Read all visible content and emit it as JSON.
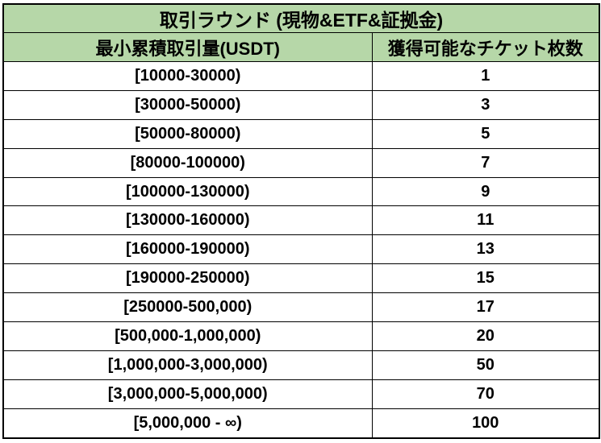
{
  "title": "取引ラウンド (現物&ETF&証拠金)",
  "header": {
    "col1": "最小累積取引量(USDT)",
    "col2": "獲得可能なチケット枚数"
  },
  "rows": [
    [
      "[10000-30000)",
      "1"
    ],
    [
      "[30000-50000)",
      "3"
    ],
    [
      "[50000-80000)",
      "5"
    ],
    [
      "[80000-100000)",
      "7"
    ],
    [
      "[100000-130000)",
      "9"
    ],
    [
      "[130000-160000)",
      "11"
    ],
    [
      "[160000-190000)",
      "13"
    ],
    [
      "[190000-250000)",
      "15"
    ],
    [
      "[250000-500,000)",
      "17"
    ],
    [
      "[500,000-1,000,000)",
      "20"
    ],
    [
      "[1,000,000-3,000,000)",
      "50"
    ],
    [
      "[3,000,000-5,000,000)",
      "70"
    ],
    [
      "[5,000,000 - ∞)",
      "100"
    ]
  ],
  "colors": {
    "header_bg": "#b6d7a8",
    "border_color": "#000000",
    "row_bg": "#ffffff",
    "text_color": "#000000"
  },
  "chart_data": {
    "type": "table",
    "title": "取引ラウンド (現物&ETF&証拠金)",
    "columns": [
      "最小累積取引量(USDT)",
      "獲得可能なチケット枚数"
    ],
    "rows": [
      [
        "[10000-30000)",
        1
      ],
      [
        "[30000-50000)",
        3
      ],
      [
        "[50000-80000)",
        5
      ],
      [
        "[80000-100000)",
        7
      ],
      [
        "[100000-130000)",
        9
      ],
      [
        "[130000-160000)",
        11
      ],
      [
        "[160000-190000)",
        13
      ],
      [
        "[190000-250000)",
        15
      ],
      [
        "[250000-500,000)",
        17
      ],
      [
        "[500,000-1,000,000)",
        20
      ],
      [
        "[1,000,000-3,000,000)",
        50
      ],
      [
        "[3,000,000-5,000,000)",
        70
      ],
      [
        "[5,000,000 - ∞)",
        100
      ]
    ],
    "layout_hints": {
      "header_background": "#b6d7a8",
      "body_background": "#ffffff",
      "border": "solid black, all cells",
      "text_style": "bold, centered"
    }
  }
}
